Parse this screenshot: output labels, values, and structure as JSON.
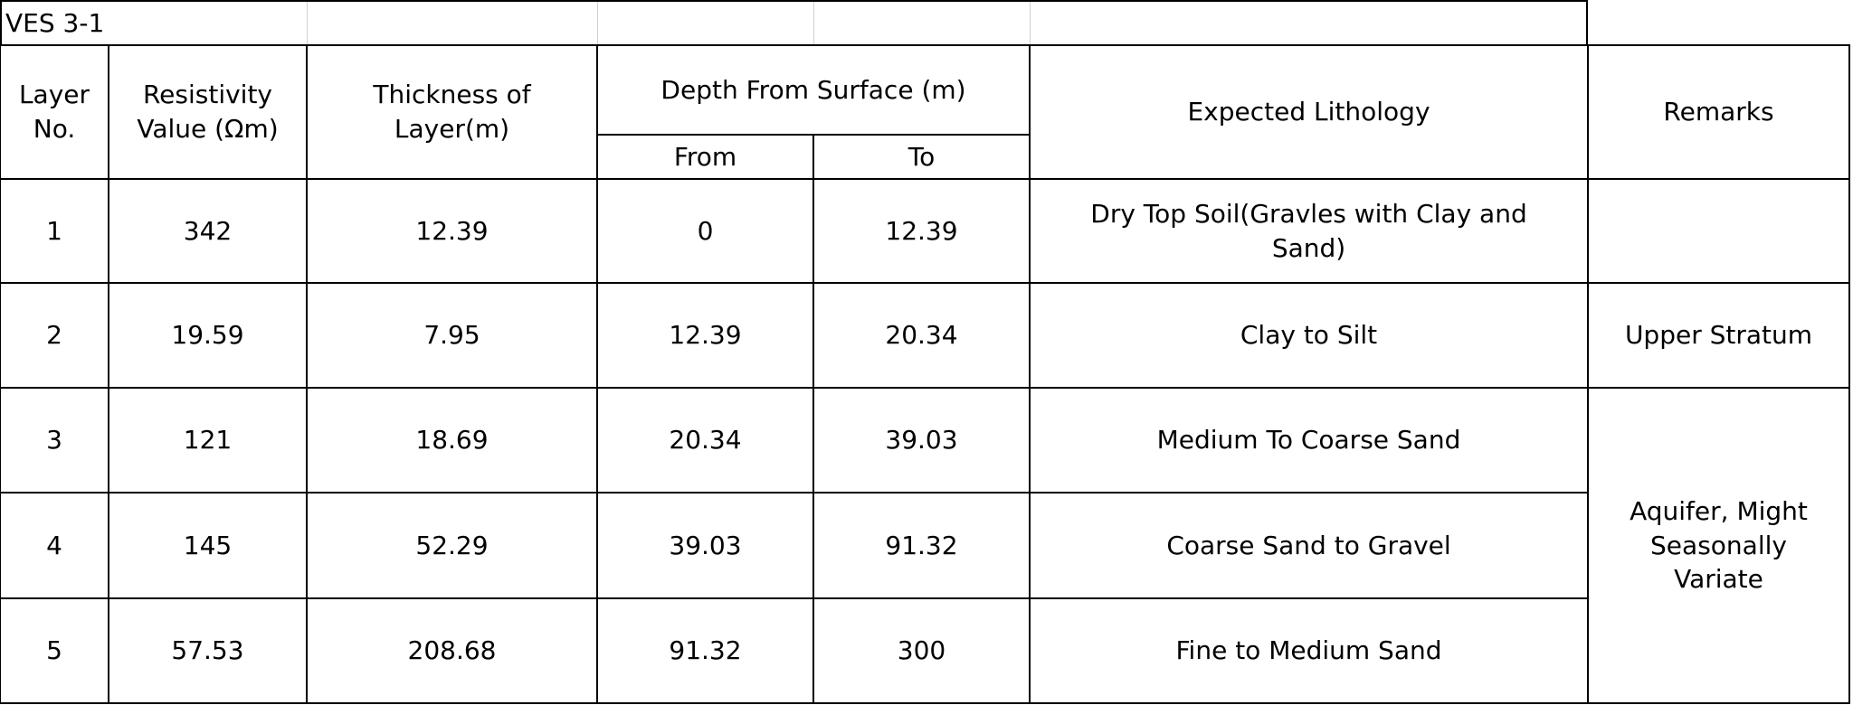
{
  "title": "VES 3-1",
  "header": {
    "layer_no": "Layer No.",
    "resistivity": "Resistivity Value (Ωm)",
    "thickness": "Thickness of Layer(m)",
    "depth": "Depth From Surface (m)",
    "from": "From",
    "to": "To",
    "lithology": "Expected Lithology",
    "remarks": "Remarks"
  },
  "table": {
    "rows": [
      [
        1,
        342,
        12.39,
        0,
        12.39,
        "Dry Top Soil(Gravles with Clay and Sand)"
      ],
      [
        2,
        19.59,
        7.95,
        12.39,
        20.34,
        "Clay to Silt"
      ],
      [
        3,
        121,
        18.69,
        20.34,
        39.03,
        "Medium To Coarse Sand"
      ],
      [
        4,
        145,
        52.29,
        39.03,
        91.32,
        "Coarse Sand to Gravel"
      ],
      [
        5,
        57.53,
        208.68,
        91.32,
        300,
        "Fine to Medium Sand"
      ]
    ]
  },
  "remarks": [
    "Upper Stratum",
    "Aquifer, Might Seasonally Variate"
  ]
}
